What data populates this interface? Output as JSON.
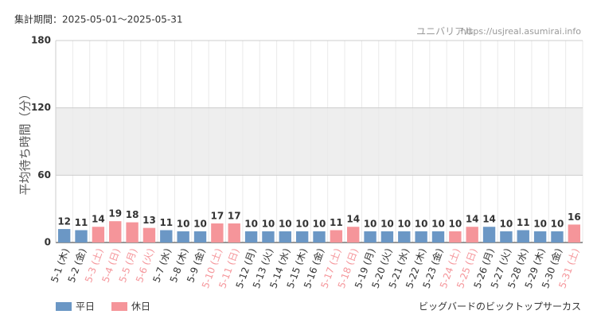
{
  "chart_data": {
    "type": "bar",
    "period": "集計期間：2025-05-01〜2025-05-31",
    "site_name": "ユニバリアル",
    "site_url": "https://usjreal.asumirai.info",
    "y_label": "平均待ち時間（分）",
    "attraction": "ビッグバードのビックトップサーカス",
    "categories": [
      "5-1 (木)",
      "5-2 (金)",
      "5-3 (土)",
      "5-4 (日)",
      "5-5 (月)",
      "5-6 (火)",
      "5-7 (水)",
      "5-8 (木)",
      "5-9 (金)",
      "5-10 (土)",
      "5-11 (日)",
      "5-12 (月)",
      "5-13 (火)",
      "5-14 (水)",
      "5-15 (木)",
      "5-16 (金)",
      "5-17 (土)",
      "5-18 (日)",
      "5-19 (月)",
      "5-20 (火)",
      "5-21 (水)",
      "5-22 (木)",
      "5-23 (金)",
      "5-24 (土)",
      "5-25 (日)",
      "5-26 (月)",
      "5-27 (火)",
      "5-28 (水)",
      "5-29 (木)",
      "5-30 (金)",
      "5-31 (土)"
    ],
    "series": [
      {
        "name": "平日",
        "color": "#6b97c5",
        "values": [
          12,
          11,
          null,
          null,
          null,
          null,
          11,
          10,
          10,
          null,
          null,
          10,
          10,
          10,
          10,
          10,
          null,
          null,
          10,
          10,
          10,
          10,
          10,
          null,
          null,
          14,
          10,
          11,
          10,
          10,
          null
        ]
      },
      {
        "name": "休日",
        "color": "#f5959a",
        "values": [
          null,
          null,
          14,
          19,
          18,
          13,
          null,
          null,
          null,
          17,
          17,
          null,
          null,
          null,
          null,
          null,
          11,
          14,
          null,
          null,
          null,
          null,
          null,
          10,
          14,
          null,
          null,
          null,
          null,
          null,
          16
        ]
      }
    ],
    "ylim": [
      0,
      180
    ],
    "yticks": [
      0,
      60,
      120,
      180
    ],
    "shaded_range": [
      60,
      120
    ],
    "grid": true
  }
}
